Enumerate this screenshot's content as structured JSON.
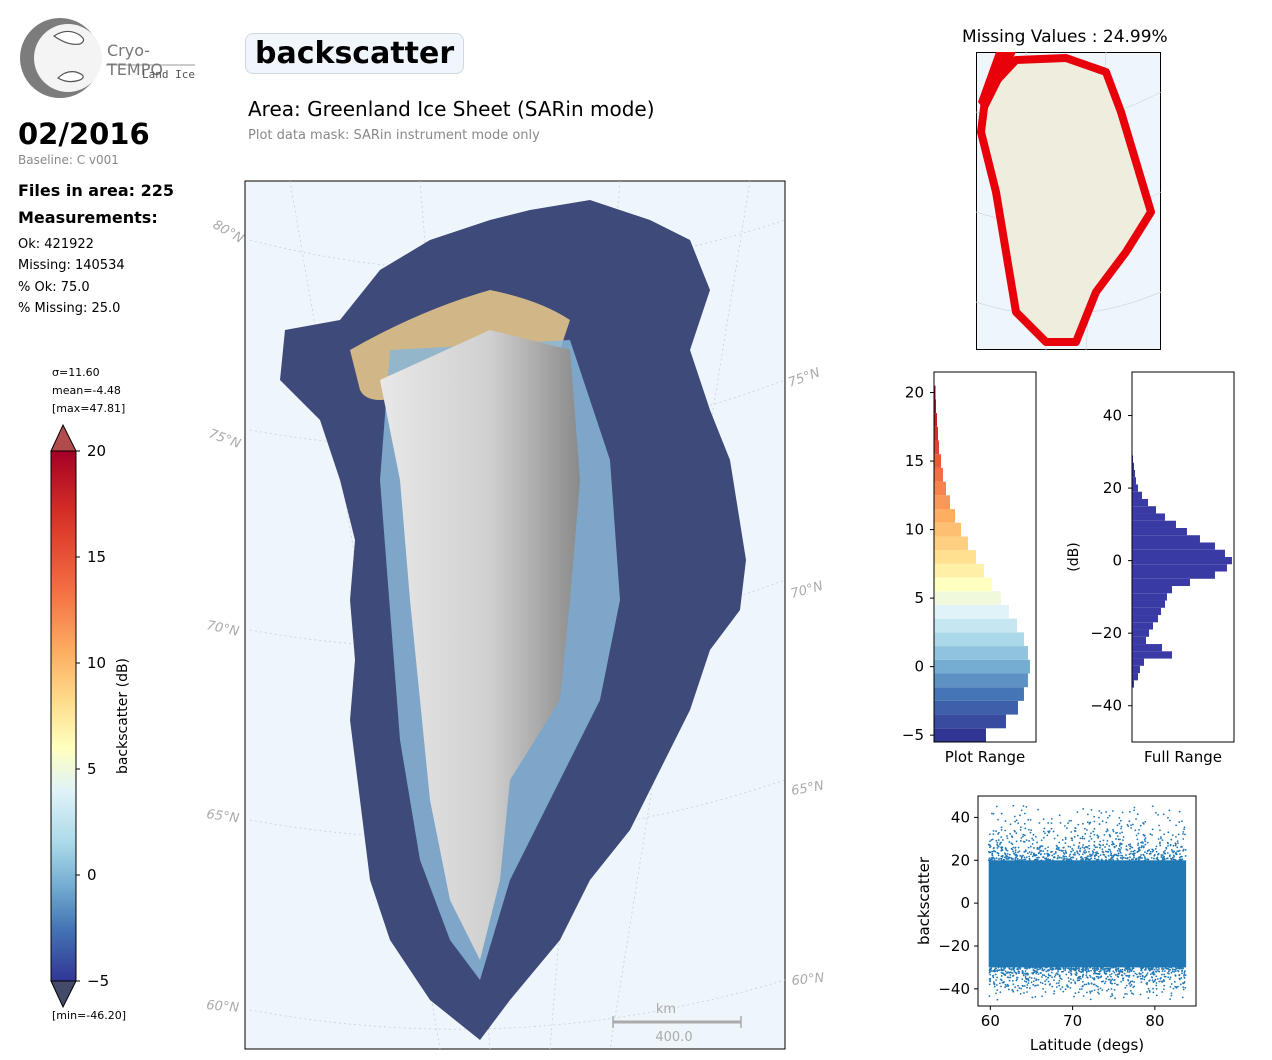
{
  "logo": {
    "name": "Cryo-TEMPO",
    "sub": "Land Ice"
  },
  "date": "02/2016",
  "baseline": "Baseline: C v001",
  "files": "Files in area: 225",
  "measurements_label": "Measurements:",
  "stats": [
    "Ok: 421922",
    "Missing: 140534",
    "% Ok: 75.0",
    "% Missing: 25.0"
  ],
  "parameter": "backscatter",
  "area_title": "Area: Greenland Ice Sheet (SARin mode)",
  "mask_note": "Plot data mask: SARin instrument mode only",
  "colorbar": {
    "sigma": "σ=11.60",
    "mean": "mean=-4.48",
    "max": "[max=47.81]",
    "min": "[min=-46.20]",
    "label": "backscatter (dB)",
    "ticks": [
      "20",
      "15",
      "10",
      "5",
      "0",
      "−5"
    ]
  },
  "map": {
    "lat_labels_left": [
      "80°N",
      "75°N",
      "70°N",
      "65°N",
      "60°N"
    ],
    "lat_labels_right": [
      "75°N",
      "70°N",
      "65°N",
      "60°N"
    ],
    "scale_unit": "km",
    "scale_value": "400.0"
  },
  "missing_title": "Missing Values : 24.99%",
  "colors": {
    "land": "#efedde",
    "ocean": "#eef6fc",
    "missing": "#e8000b",
    "hist_full": "#3a3aa5",
    "scatter": "#1f77b4"
  },
  "chart_data": [
    {
      "type": "bar",
      "title": "",
      "xlabel": "Plot Range",
      "ylabel": "",
      "orientation": "horizontal",
      "ylim": [
        -5.5,
        21.5
      ],
      "yticks": [
        -5,
        0,
        5,
        10,
        15,
        20
      ],
      "bins_y": [
        -5,
        -4,
        -3,
        -2,
        -1,
        0,
        1,
        2,
        3,
        4,
        5,
        6,
        7,
        8,
        9,
        10,
        11,
        12,
        13,
        14,
        15,
        16,
        17,
        18,
        19,
        20
      ],
      "values": [
        0.52,
        0.72,
        0.84,
        0.9,
        0.94,
        0.96,
        0.94,
        0.9,
        0.83,
        0.75,
        0.67,
        0.58,
        0.5,
        0.42,
        0.34,
        0.27,
        0.21,
        0.16,
        0.12,
        0.09,
        0.07,
        0.05,
        0.04,
        0.03,
        0.02,
        0.015
      ]
    },
    {
      "type": "bar",
      "title": "",
      "xlabel": "Full Range",
      "ylabel": "(dB)",
      "orientation": "horizontal",
      "ylim": [
        -50,
        52
      ],
      "yticks": [
        -40,
        -20,
        0,
        20,
        40
      ],
      "bins_y": [
        -34,
        -32,
        -30,
        -28,
        -26,
        -24,
        -22,
        -20,
        -18,
        -16,
        -14,
        -12,
        -10,
        -8,
        -6,
        -4,
        -2,
        0,
        2,
        4,
        6,
        8,
        10,
        12,
        14,
        16,
        18,
        20,
        22,
        24,
        26,
        28
      ],
      "values": [
        0.02,
        0.06,
        0.08,
        0.12,
        0.4,
        0.3,
        0.14,
        0.17,
        0.21,
        0.26,
        0.29,
        0.33,
        0.35,
        0.4,
        0.58,
        0.83,
        0.95,
        1.0,
        0.93,
        0.83,
        0.68,
        0.55,
        0.44,
        0.33,
        0.24,
        0.16,
        0.1,
        0.06,
        0.04,
        0.03,
        0.02,
        0.01
      ]
    },
    {
      "type": "scatter",
      "title": "",
      "xlabel": "Latitude (degs)",
      "ylabel": "backscatter",
      "xlim": [
        58.5,
        85
      ],
      "ylim": [
        -48,
        50
      ],
      "xticks": [
        60,
        70,
        80
      ],
      "yticks": [
        -40,
        -20,
        0,
        20,
        40
      ],
      "x_range": [
        59.8,
        83.8
      ],
      "y_core": [
        -30,
        20
      ],
      "y_extremes": [
        -46.2,
        47.81
      ]
    }
  ]
}
